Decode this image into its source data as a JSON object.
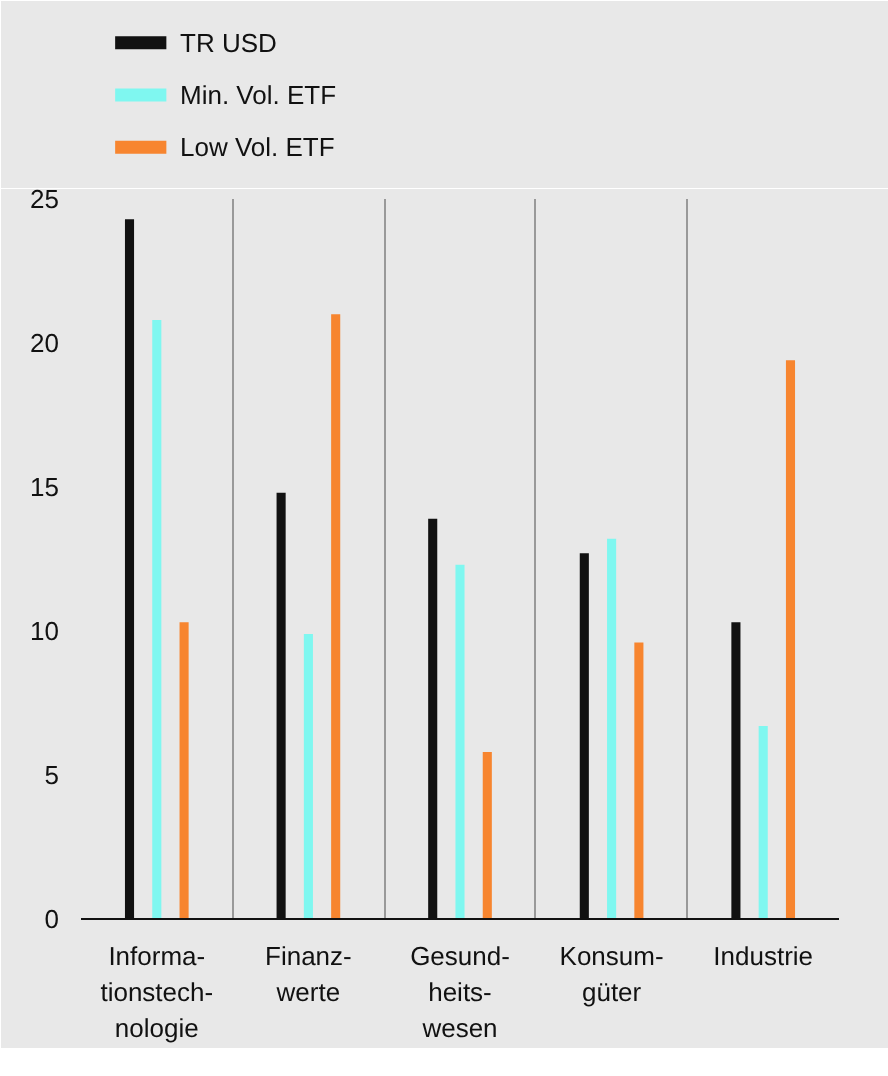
{
  "chart_data": {
    "type": "bar",
    "categories": [
      "Informa-\ntionstech-\nnologie",
      "Finanz-\nwerte",
      "Gesund-\nheits-\nwesen",
      "Konsum-\ngüter",
      "Industrie"
    ],
    "series": [
      {
        "name": "TR USD",
        "color": "#111111",
        "values": [
          24.3,
          14.8,
          13.9,
          12.7,
          10.3
        ]
      },
      {
        "name": "Min. Vol. ETF",
        "color": "#7ff7f0",
        "values": [
          20.8,
          9.9,
          12.3,
          13.2,
          6.7
        ]
      },
      {
        "name": "Low Vol. ETF",
        "color": "#f7852f",
        "values": [
          10.3,
          21.0,
          5.8,
          9.6,
          19.4
        ]
      }
    ],
    "ylim": [
      0,
      25
    ],
    "yticks": [
      0,
      5,
      10,
      15,
      20,
      25
    ],
    "grid": "x",
    "legend": "top left"
  }
}
